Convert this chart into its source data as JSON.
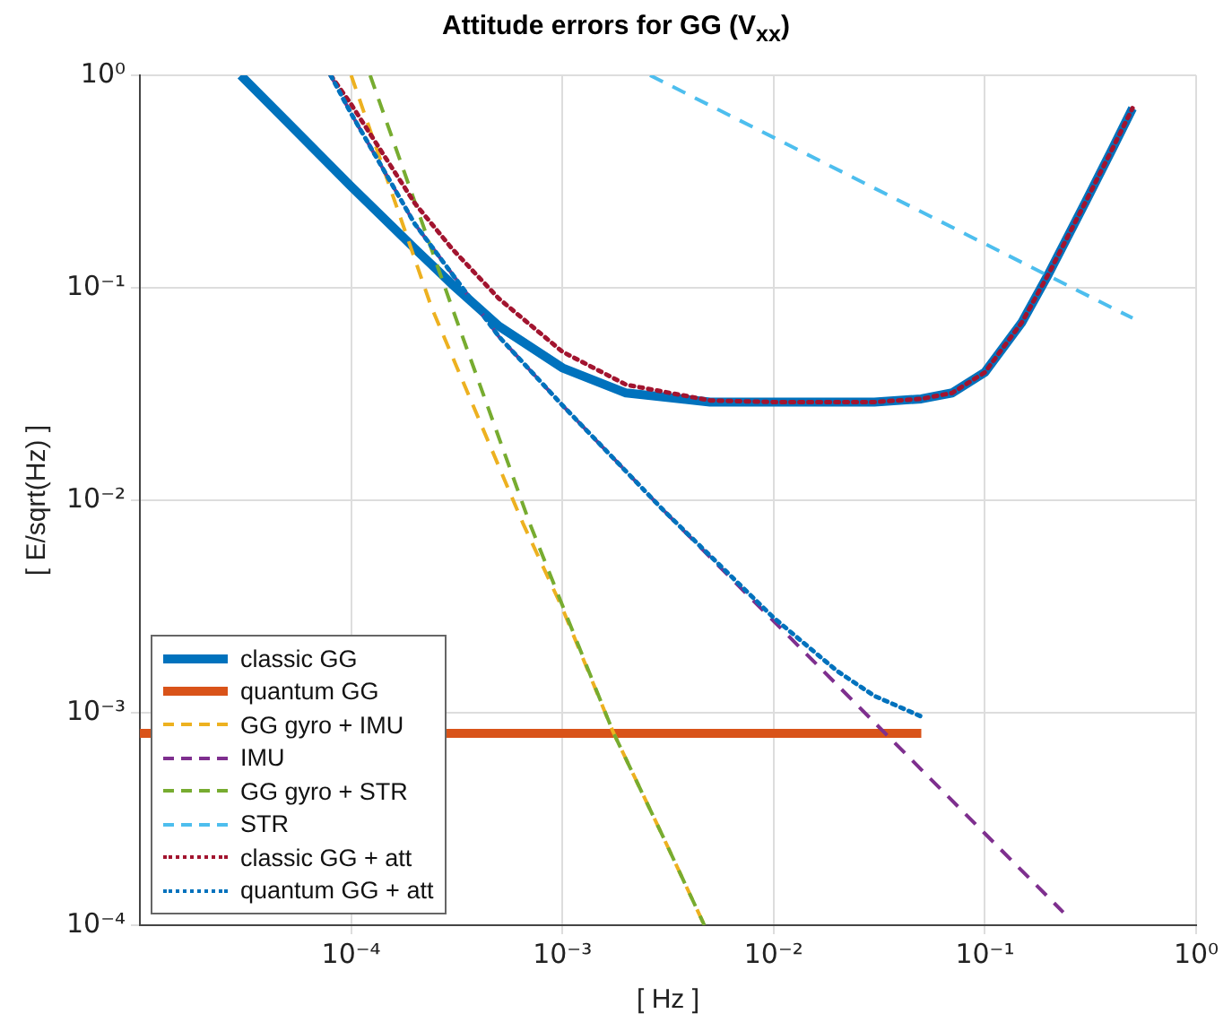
{
  "chart_data": {
    "type": "line",
    "title": "Attitude errors for GG (V$_{xx}$)",
    "xlabel": "[ Hz ]",
    "ylabel": "[ E/sqrt(Hz) ]",
    "log": "xy",
    "grid": true,
    "legend": "bottom left",
    "marker": "none",
    "xlim": [
      1e-05,
      1
    ],
    "ylim": [
      0.0001,
      1
    ],
    "xticks": [
      {
        "value": 0.0001,
        "label": "10⁻⁴"
      },
      {
        "value": 0.001,
        "label": "10⁻³"
      },
      {
        "value": 0.01,
        "label": "10⁻²"
      },
      {
        "value": 0.1,
        "label": "10⁻¹"
      },
      {
        "value": 1,
        "label": "10⁰"
      }
    ],
    "yticks": [
      {
        "value": 0.0001,
        "label": "10⁻⁴"
      },
      {
        "value": 0.001,
        "label": "10⁻³"
      },
      {
        "value": 0.01,
        "label": "10⁻²"
      },
      {
        "value": 0.1,
        "label": "10⁻¹"
      },
      {
        "value": 1,
        "label": "10⁰"
      }
    ],
    "series": [
      {
        "name": "classic GG",
        "color": "#0072bd",
        "line_style": "solid",
        "x": [
          3e-05,
          5e-05,
          0.0001,
          0.0002,
          0.0003,
          0.0005,
          0.001,
          0.002,
          0.005,
          0.01,
          0.02,
          0.03,
          0.05,
          0.07,
          0.1,
          0.15,
          0.2,
          0.3,
          0.4,
          0.5
        ],
        "values": [
          1.0,
          0.6,
          0.3,
          0.153,
          0.104,
          0.066,
          0.042,
          0.032,
          0.029,
          0.029,
          0.029,
          0.029,
          0.03,
          0.032,
          0.04,
          0.069,
          0.116,
          0.254,
          0.448,
          0.7
        ]
      },
      {
        "name": "quantum GG",
        "color": "#d95319",
        "line_style": "solid",
        "x": [
          1e-05,
          0.05
        ],
        "values": [
          0.0008,
          0.0008
        ]
      },
      {
        "name": "GG gyro + IMU",
        "color": "#edb120",
        "line_style": "dashed",
        "x": [
          0.0001,
          0.00024,
          0.00065,
          0.001,
          0.00174,
          0.003,
          0.0047
        ],
        "values": [
          1.0,
          0.081,
          0.0078,
          0.0031,
          0.00081,
          0.00026,
          0.0001
        ]
      },
      {
        "name": "IMU",
        "color": "#7e2f8e",
        "line_style": "dashed",
        "x": [
          8e-05,
          0.0001,
          0.0002,
          0.0005,
          0.001,
          0.003,
          0.01,
          0.03,
          0.1,
          0.235
        ],
        "values": [
          1.0,
          0.66,
          0.2,
          0.059,
          0.028,
          0.009,
          0.0027,
          0.0009,
          0.00027,
          0.000115
        ]
      },
      {
        "name": "GG gyro + STR",
        "color": "#77ac30",
        "line_style": "dashed",
        "x": [
          0.000123,
          0.0003,
          0.0007,
          0.001,
          0.00174,
          0.003,
          0.0047
        ],
        "values": [
          1.0,
          0.081,
          0.0078,
          0.0032,
          0.00081,
          0.00026,
          0.0001
        ]
      },
      {
        "name": "STR",
        "color": "#4dbeee",
        "line_style": "dashed",
        "x": [
          0.0026,
          0.5
        ],
        "values": [
          1.0,
          0.072
        ]
      },
      {
        "name": "classic GG + att",
        "color": "#a2142f",
        "line_style": "dotted",
        "x": [
          8e-05,
          0.0001,
          0.0002,
          0.0003,
          0.0005,
          0.001,
          0.002,
          0.005,
          0.01,
          0.02,
          0.03,
          0.05,
          0.07,
          0.1,
          0.15,
          0.2,
          0.3,
          0.4,
          0.5
        ],
        "values": [
          1.0,
          0.73,
          0.25,
          0.153,
          0.089,
          0.05,
          0.035,
          0.0295,
          0.029,
          0.029,
          0.029,
          0.03,
          0.032,
          0.04,
          0.069,
          0.116,
          0.254,
          0.448,
          0.7
        ]
      },
      {
        "name": "quantum GG + att",
        "color": "#0072bd",
        "line_style": "dotted",
        "x": [
          8e-05,
          0.0001,
          0.0002,
          0.0005,
          0.001,
          0.003,
          0.01,
          0.02,
          0.03,
          0.05
        ],
        "values": [
          1.0,
          0.66,
          0.2,
          0.059,
          0.028,
          0.009,
          0.0028,
          0.00157,
          0.0012,
          0.00096
        ]
      }
    ]
  }
}
